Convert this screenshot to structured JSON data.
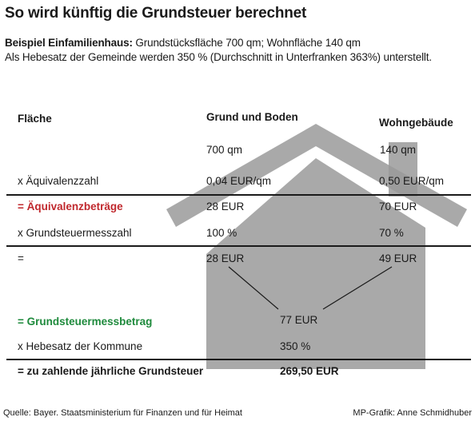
{
  "title": "So wird künftig die Grundsteuer berechnet",
  "intro": {
    "bold_label": "Beispiel Einfamilienhaus:",
    "line1_rest": " Grundstücksfläche 700 qm; Wohnfläche 140 qm",
    "line2": "Als Hebesatz der Gemeinde werden 350 % (Durchschnitt in Unterfranken 363%) unterstellt."
  },
  "columns": {
    "label_header": "Fläche",
    "col1_header": "Grund und Boden",
    "col2_header": "Wohngebäude"
  },
  "rows": {
    "area": {
      "col1": "700 qm",
      "col2": "140 qm"
    },
    "factor": {
      "label": "x Äquivalenzzahl",
      "col1": "0,04 EUR/qm",
      "col2": "0,50 EUR/qm"
    },
    "equiv_amount": {
      "label": "= Äquivalenzbeträge",
      "col1": "28 EUR",
      "col2": "70 EUR"
    },
    "tax_index": {
      "label": "x Grundsteuermesszahl",
      "col1": "100 %",
      "col2": "70 %"
    },
    "subtotal": {
      "label": "=",
      "col1": "28 EUR",
      "col2": "49 EUR"
    },
    "base_amount": {
      "label": "= Grundsteuermessbetrag",
      "value": "77 EUR"
    },
    "rate": {
      "label": "x Hebesatz der Kommune",
      "value": "350 %"
    },
    "total": {
      "label": "= zu zahlende jährliche Grundsteuer",
      "value": "269,50 EUR"
    }
  },
  "footer": {
    "source": "Quelle: Bayer. Staatsministerium für Finanzen und für Heimat",
    "credit": "MP-Grafik: Anne Schmidhuber"
  },
  "colors": {
    "house": "#9a9a9a",
    "highlight_red": "#c0282d",
    "highlight_green": "#1e8a3c"
  }
}
